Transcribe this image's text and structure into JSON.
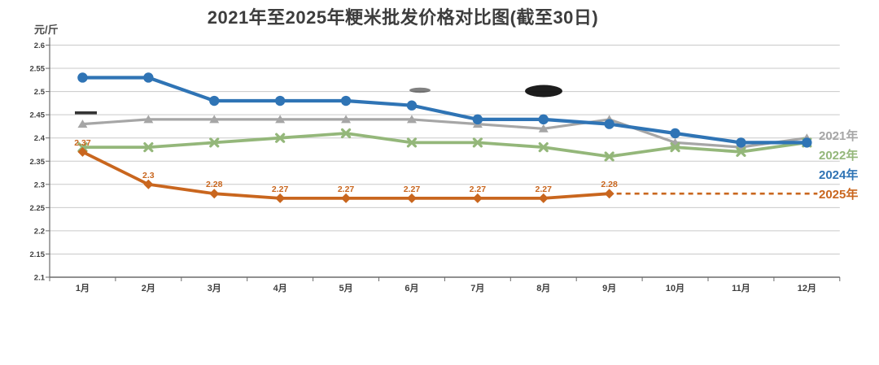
{
  "title": "2021年至2025年粳米批发价格对比图(截至30日)",
  "y_axis_unit": "元/斤",
  "chart_data": {
    "type": "line",
    "title": "2021年至2025年粳米批发价格对比图(截至30日)",
    "ylabel": "元/斤",
    "xlabel": "",
    "categories": [
      "1月",
      "2月",
      "3月",
      "4月",
      "5月",
      "6月",
      "7月",
      "8月",
      "9月",
      "10月",
      "11月",
      "12月"
    ],
    "ylim": [
      2.1,
      2.6
    ],
    "ytick_interval": 0.05,
    "y_tick_labels": [
      "2.6",
      "2.55",
      "2.5",
      "2.45",
      "2.4",
      "2.35",
      "2.3",
      "2.25",
      "2.2",
      "2.15",
      "2.1"
    ],
    "grid": true,
    "legend_position": "right",
    "series": [
      {
        "name": "2021年",
        "color": "#a6a6a6",
        "marker": "triangle",
        "line_style": "solid",
        "values": [
          2.43,
          2.44,
          2.44,
          2.44,
          2.44,
          2.44,
          2.43,
          2.42,
          2.44,
          2.39,
          2.38,
          2.4
        ]
      },
      {
        "name": "2022年",
        "color": "#94b77a",
        "marker": "x",
        "line_style": "solid",
        "values": [
          2.38,
          2.38,
          2.39,
          2.4,
          2.41,
          2.39,
          2.39,
          2.38,
          2.36,
          2.38,
          2.37,
          2.39
        ]
      },
      {
        "name": "2024年",
        "color": "#2f74b5",
        "marker": "circle",
        "line_style": "solid",
        "values": [
          2.53,
          2.53,
          2.48,
          2.48,
          2.48,
          2.47,
          2.44,
          2.44,
          2.43,
          2.41,
          2.39,
          2.39
        ]
      },
      {
        "name": "2025年",
        "color": "#c9661e",
        "marker": "diamond",
        "line_style": "solid",
        "values": [
          2.37,
          2.3,
          2.28,
          2.27,
          2.27,
          2.27,
          2.27,
          2.27,
          2.28,
          null,
          null,
          null
        ],
        "data_labels": [
          "2.37",
          "2.3",
          "2.28",
          "2.27",
          "2.27",
          "2.27",
          "2.27",
          "2.27",
          "2.28"
        ],
        "projection": {
          "style": "dashed",
          "value": 2.28,
          "from": "9月",
          "to": "12月"
        }
      }
    ]
  }
}
